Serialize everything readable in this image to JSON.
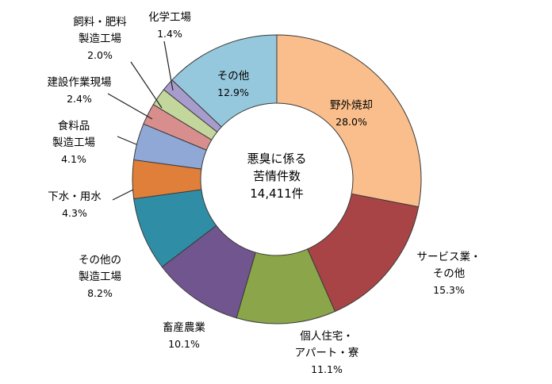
{
  "chart_data": {
    "type": "pie",
    "style": "donut",
    "center_label": [
      "悪臭に係る",
      "苦情件数",
      "14,411件"
    ],
    "slices": [
      {
        "name_lines": [
          "野外焼却"
        ],
        "pct_label": "28.0%",
        "value": 28.0,
        "color": "#f9be8c"
      },
      {
        "name_lines": [
          "サービス業・",
          "その他"
        ],
        "pct_label": "15.3%",
        "value": 15.3,
        "color": "#a94446"
      },
      {
        "name_lines": [
          "個人住宅・",
          "アパート・寮"
        ],
        "pct_label": "11.1%",
        "value": 11.1,
        "color": "#8aa54a"
      },
      {
        "name_lines": [
          "畜産農業"
        ],
        "pct_label": "10.1%",
        "value": 10.1,
        "color": "#71558f"
      },
      {
        "name_lines": [
          "その他の",
          "製造工場"
        ],
        "pct_label": "8.2%",
        "value": 8.2,
        "color": "#2f8ea5"
      },
      {
        "name_lines": [
          "下水・用水"
        ],
        "pct_label": "4.3%",
        "value": 4.3,
        "color": "#e07f3a"
      },
      {
        "name_lines": [
          "食料品",
          "製造工場"
        ],
        "pct_label": "4.1%",
        "value": 4.1,
        "color": "#8fa8d6"
      },
      {
        "name_lines": [
          "建設作業現場"
        ],
        "pct_label": "2.4%",
        "value": 2.4,
        "color": "#d98e8e"
      },
      {
        "name_lines": [
          "飼料・肥料",
          "製造工場"
        ],
        "pct_label": "2.0%",
        "value": 2.0,
        "color": "#c3d69b"
      },
      {
        "name_lines": [
          "化学工場"
        ],
        "pct_label": "1.4%",
        "value": 1.4,
        "color": "#a79ccb"
      },
      {
        "name_lines": [
          "その他"
        ],
        "pct_label": "12.9%",
        "value": 12.9,
        "color": "#95c8dc"
      }
    ]
  }
}
